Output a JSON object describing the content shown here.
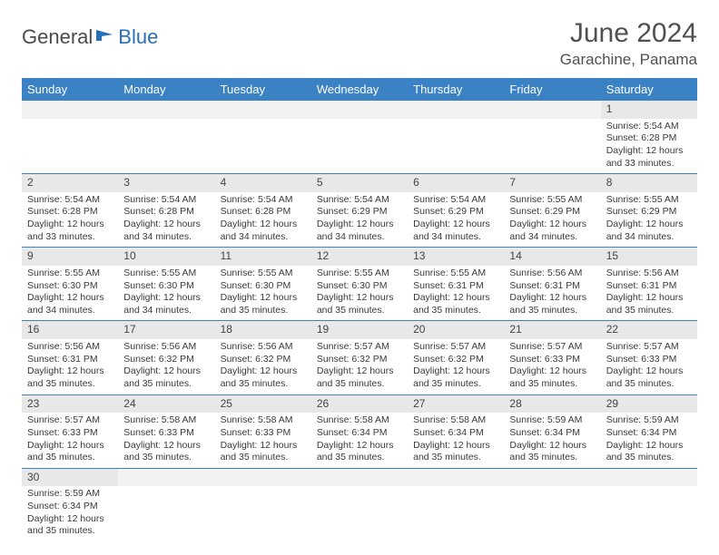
{
  "logo": {
    "text1": "General",
    "text2": "Blue"
  },
  "title": "June 2024",
  "location": "Garachine, Panama",
  "colors": {
    "header_bg": "#3b82c4",
    "header_fg": "#ffffff",
    "daynum_bg": "#e8e8e8",
    "border": "#3b82c4",
    "logo_blue": "#2a6fb5"
  },
  "daysOfWeek": [
    "Sunday",
    "Monday",
    "Tuesday",
    "Wednesday",
    "Thursday",
    "Friday",
    "Saturday"
  ],
  "weeks": [
    [
      null,
      null,
      null,
      null,
      null,
      null,
      {
        "n": "1",
        "sr": "Sunrise: 5:54 AM",
        "ss": "Sunset: 6:28 PM",
        "dl": "Daylight: 12 hours and 33 minutes."
      }
    ],
    [
      {
        "n": "2",
        "sr": "Sunrise: 5:54 AM",
        "ss": "Sunset: 6:28 PM",
        "dl": "Daylight: 12 hours and 33 minutes."
      },
      {
        "n": "3",
        "sr": "Sunrise: 5:54 AM",
        "ss": "Sunset: 6:28 PM",
        "dl": "Daylight: 12 hours and 34 minutes."
      },
      {
        "n": "4",
        "sr": "Sunrise: 5:54 AM",
        "ss": "Sunset: 6:28 PM",
        "dl": "Daylight: 12 hours and 34 minutes."
      },
      {
        "n": "5",
        "sr": "Sunrise: 5:54 AM",
        "ss": "Sunset: 6:29 PM",
        "dl": "Daylight: 12 hours and 34 minutes."
      },
      {
        "n": "6",
        "sr": "Sunrise: 5:54 AM",
        "ss": "Sunset: 6:29 PM",
        "dl": "Daylight: 12 hours and 34 minutes."
      },
      {
        "n": "7",
        "sr": "Sunrise: 5:55 AM",
        "ss": "Sunset: 6:29 PM",
        "dl": "Daylight: 12 hours and 34 minutes."
      },
      {
        "n": "8",
        "sr": "Sunrise: 5:55 AM",
        "ss": "Sunset: 6:29 PM",
        "dl": "Daylight: 12 hours and 34 minutes."
      }
    ],
    [
      {
        "n": "9",
        "sr": "Sunrise: 5:55 AM",
        "ss": "Sunset: 6:30 PM",
        "dl": "Daylight: 12 hours and 34 minutes."
      },
      {
        "n": "10",
        "sr": "Sunrise: 5:55 AM",
        "ss": "Sunset: 6:30 PM",
        "dl": "Daylight: 12 hours and 34 minutes."
      },
      {
        "n": "11",
        "sr": "Sunrise: 5:55 AM",
        "ss": "Sunset: 6:30 PM",
        "dl": "Daylight: 12 hours and 35 minutes."
      },
      {
        "n": "12",
        "sr": "Sunrise: 5:55 AM",
        "ss": "Sunset: 6:30 PM",
        "dl": "Daylight: 12 hours and 35 minutes."
      },
      {
        "n": "13",
        "sr": "Sunrise: 5:55 AM",
        "ss": "Sunset: 6:31 PM",
        "dl": "Daylight: 12 hours and 35 minutes."
      },
      {
        "n": "14",
        "sr": "Sunrise: 5:56 AM",
        "ss": "Sunset: 6:31 PM",
        "dl": "Daylight: 12 hours and 35 minutes."
      },
      {
        "n": "15",
        "sr": "Sunrise: 5:56 AM",
        "ss": "Sunset: 6:31 PM",
        "dl": "Daylight: 12 hours and 35 minutes."
      }
    ],
    [
      {
        "n": "16",
        "sr": "Sunrise: 5:56 AM",
        "ss": "Sunset: 6:31 PM",
        "dl": "Daylight: 12 hours and 35 minutes."
      },
      {
        "n": "17",
        "sr": "Sunrise: 5:56 AM",
        "ss": "Sunset: 6:32 PM",
        "dl": "Daylight: 12 hours and 35 minutes."
      },
      {
        "n": "18",
        "sr": "Sunrise: 5:56 AM",
        "ss": "Sunset: 6:32 PM",
        "dl": "Daylight: 12 hours and 35 minutes."
      },
      {
        "n": "19",
        "sr": "Sunrise: 5:57 AM",
        "ss": "Sunset: 6:32 PM",
        "dl": "Daylight: 12 hours and 35 minutes."
      },
      {
        "n": "20",
        "sr": "Sunrise: 5:57 AM",
        "ss": "Sunset: 6:32 PM",
        "dl": "Daylight: 12 hours and 35 minutes."
      },
      {
        "n": "21",
        "sr": "Sunrise: 5:57 AM",
        "ss": "Sunset: 6:33 PM",
        "dl": "Daylight: 12 hours and 35 minutes."
      },
      {
        "n": "22",
        "sr": "Sunrise: 5:57 AM",
        "ss": "Sunset: 6:33 PM",
        "dl": "Daylight: 12 hours and 35 minutes."
      }
    ],
    [
      {
        "n": "23",
        "sr": "Sunrise: 5:57 AM",
        "ss": "Sunset: 6:33 PM",
        "dl": "Daylight: 12 hours and 35 minutes."
      },
      {
        "n": "24",
        "sr": "Sunrise: 5:58 AM",
        "ss": "Sunset: 6:33 PM",
        "dl": "Daylight: 12 hours and 35 minutes."
      },
      {
        "n": "25",
        "sr": "Sunrise: 5:58 AM",
        "ss": "Sunset: 6:33 PM",
        "dl": "Daylight: 12 hours and 35 minutes."
      },
      {
        "n": "26",
        "sr": "Sunrise: 5:58 AM",
        "ss": "Sunset: 6:34 PM",
        "dl": "Daylight: 12 hours and 35 minutes."
      },
      {
        "n": "27",
        "sr": "Sunrise: 5:58 AM",
        "ss": "Sunset: 6:34 PM",
        "dl": "Daylight: 12 hours and 35 minutes."
      },
      {
        "n": "28",
        "sr": "Sunrise: 5:59 AM",
        "ss": "Sunset: 6:34 PM",
        "dl": "Daylight: 12 hours and 35 minutes."
      },
      {
        "n": "29",
        "sr": "Sunrise: 5:59 AM",
        "ss": "Sunset: 6:34 PM",
        "dl": "Daylight: 12 hours and 35 minutes."
      }
    ],
    [
      {
        "n": "30",
        "sr": "Sunrise: 5:59 AM",
        "ss": "Sunset: 6:34 PM",
        "dl": "Daylight: 12 hours and 35 minutes."
      },
      null,
      null,
      null,
      null,
      null,
      null
    ]
  ]
}
